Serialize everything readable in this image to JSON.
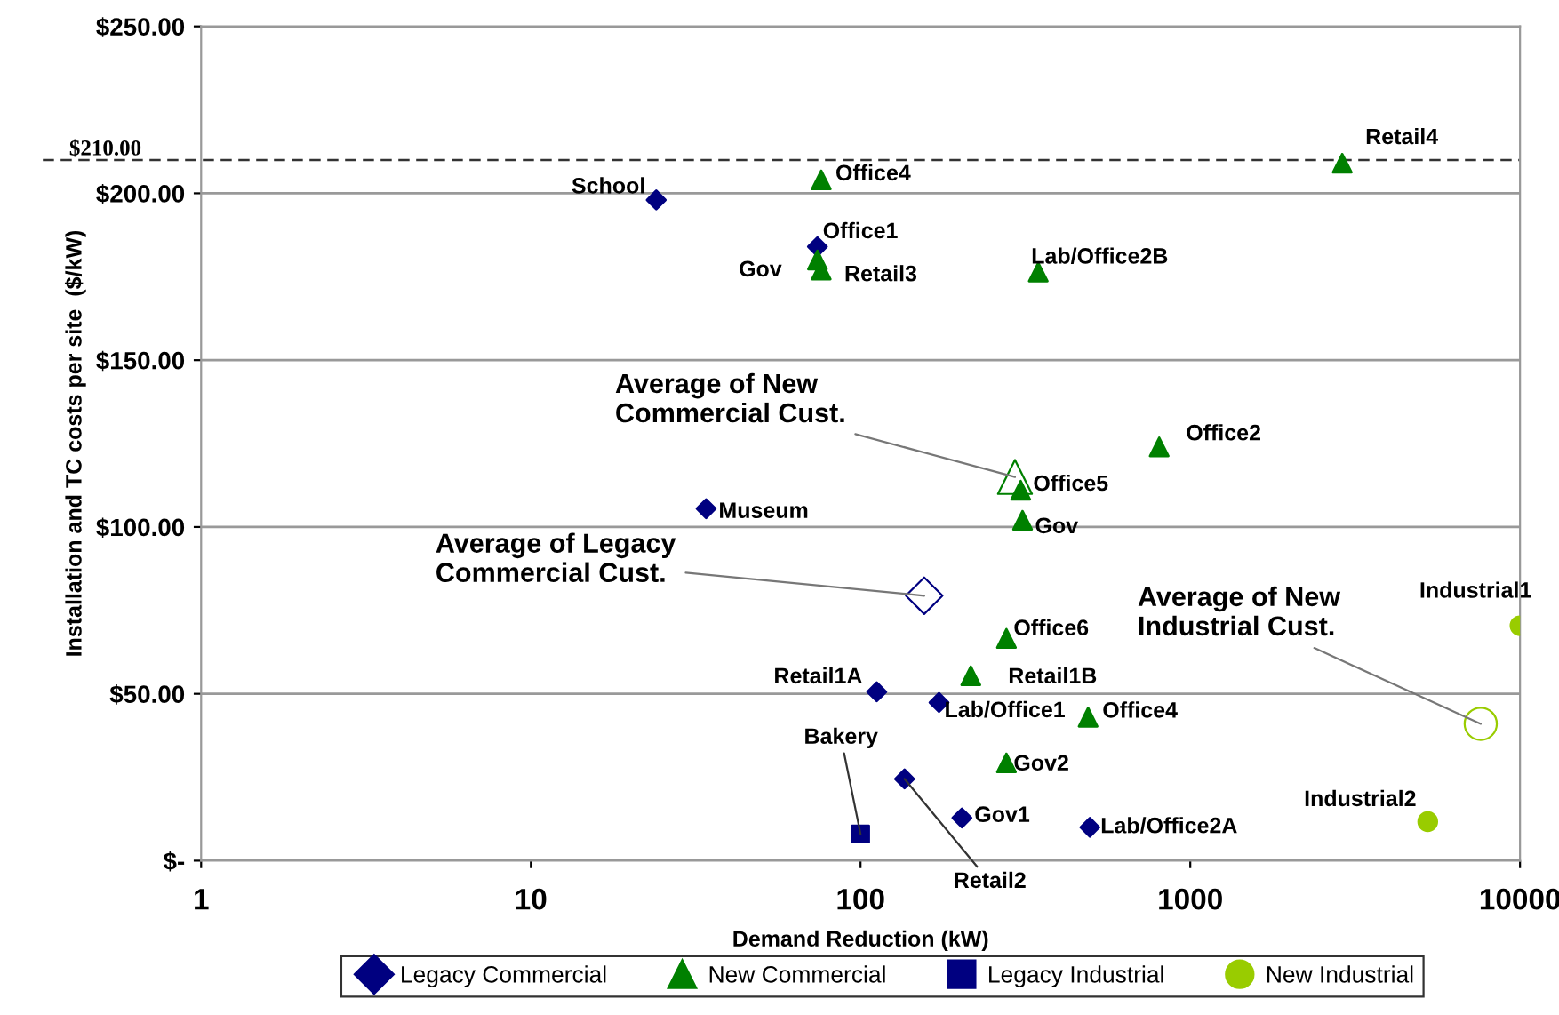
{
  "chart_data": {
    "type": "scatter",
    "xlabel": "Demand Reduction (kW)",
    "ylabel": "Installation and TC costs per site  ($/kW)",
    "log": "x",
    "xlim": [
      1,
      10000
    ],
    "xticks": [
      1,
      10,
      100,
      1000,
      10000
    ],
    "ylim": [
      0,
      250
    ],
    "yticks": [
      {
        "value": 0,
        "label": "$-"
      },
      {
        "value": 50,
        "label": "$50.00"
      },
      {
        "value": 100,
        "label": "$100.00"
      },
      {
        "value": 150,
        "label": "$150.00"
      },
      {
        "value": 200,
        "label": "$200.00"
      },
      {
        "value": 250,
        "label": "$250.00"
      }
    ],
    "grid": "y",
    "legend": "bottom",
    "series": [
      {
        "name": "Legacy Commercial",
        "color": "#000080",
        "marker": "diamond",
        "x": [
          24,
          74,
          34,
          112,
          173,
          136,
          203,
          496
        ],
        "values": [
          198,
          184,
          105.5,
          50.6,
          47.4,
          24.5,
          12.8,
          10
        ]
      },
      {
        "name": "New Commercial",
        "color": "#008000",
        "marker": "triangle",
        "x": [
          76,
          74,
          76,
          346,
          2890,
          805,
          306,
          310,
          277,
          216,
          490,
          277
        ],
        "values": [
          204,
          180,
          177,
          176.4,
          209,
          124,
          111,
          102,
          66.6,
          55.4,
          43,
          29.3
        ]
      },
      {
        "name": "Legacy Industrial",
        "color": "#000080",
        "marker": "square",
        "x": [
          100
        ],
        "values": [
          8
        ]
      },
      {
        "name": "New Industrial",
        "color": "#99cc00",
        "marker": "circle",
        "x": [
          10000,
          5250
        ],
        "values": [
          70.4,
          11.7
        ]
      },
      {
        "color": "#000080",
        "marker": "diamond",
        "x": [
          156
        ],
        "values": [
          79.4
        ]
      },
      {
        "color": "#008000",
        "marker": "triangle",
        "x": [
          294
        ],
        "values": [
          115
        ]
      },
      {
        "color": "#99cc00",
        "marker": "circle",
        "x": [
          7600
        ],
        "values": [
          41
        ]
      }
    ],
    "ref_lines": [
      {
        "axis": "y",
        "value": 210,
        "label": "$210.00",
        "line_style": "dashed",
        "color": "#333333"
      }
    ],
    "annotations": [
      {
        "text": "School",
        "x": 24,
        "y": 198
      },
      {
        "text": "Office1",
        "x": 74,
        "y": 184
      },
      {
        "text": "Office4",
        "x": 76,
        "y": 204
      },
      {
        "text": "Gov",
        "x": 74,
        "y": 180
      },
      {
        "text": "Retail3",
        "x": 76,
        "y": 177
      },
      {
        "text": "Lab/Office2B",
        "x": 346,
        "y": 176.4
      },
      {
        "text": "Retail4",
        "x": 2890,
        "y": 209
      },
      {
        "text": "Office2",
        "x": 805,
        "y": 124
      },
      {
        "text": "Office5",
        "x": 306,
        "y": 111
      },
      {
        "text": "Gov",
        "x": 310,
        "y": 102
      },
      {
        "text": "Museum",
        "x": 34,
        "y": 105.5
      },
      {
        "text": "Office6",
        "x": 277,
        "y": 66.6
      },
      {
        "text": "Retail1B",
        "x": 216,
        "y": 55.4
      },
      {
        "text": "Retail1A",
        "x": 112,
        "y": 50.6
      },
      {
        "text": "Lab/Office1",
        "x": 173,
        "y": 47.4
      },
      {
        "text": "Office4",
        "x": 490,
        "y": 43
      },
      {
        "text": "Gov2",
        "x": 277,
        "y": 29.3
      },
      {
        "text": "Gov1",
        "x": 203,
        "y": 12.8
      },
      {
        "text": "Lab/Office2A",
        "x": 496,
        "y": 10
      },
      {
        "text": "Retail2",
        "x": 136,
        "y": 24.5
      },
      {
        "text": "Bakery",
        "x": 100,
        "y": 8
      },
      {
        "text": "Industrial1",
        "x": 10000,
        "y": 70.4
      },
      {
        "text": "Industrial2",
        "x": 5250,
        "y": 11.7
      },
      {
        "text": "Average of New\nCommercial Cust.",
        "x": 294,
        "y": 115
      },
      {
        "text": "Average of Legacy\nCommercial Cust.",
        "x": 156,
        "y": 79.4
      },
      {
        "text": "Average of New\nIndustrial Cust.",
        "x": 7600,
        "y": 41
      }
    ]
  }
}
